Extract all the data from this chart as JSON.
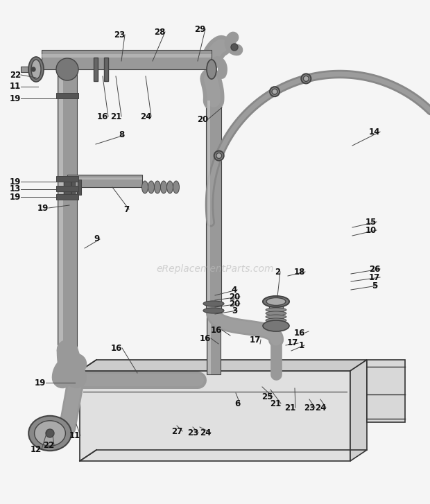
{
  "bg": "#f5f5f5",
  "pipe_fc": "#999999",
  "pipe_ec": "#444444",
  "pipe_lw": 1.0,
  "dark": "#333333",
  "light": "#cccccc",
  "wm_color": "#bbbbbb",
  "wm_text": "eReplacementParts.com",
  "label_fs": 8.5,
  "label_color": "#111111",
  "line_color": "#444444",
  "leader_lw": 0.7,
  "labels": [
    [
      "22",
      22,
      108,
      52,
      112
    ],
    [
      "11",
      22,
      125,
      55,
      125
    ],
    [
      "19",
      22,
      142,
      82,
      142
    ],
    [
      "23",
      172,
      50,
      175,
      88
    ],
    [
      "28",
      230,
      46,
      220,
      88
    ],
    [
      "29",
      288,
      42,
      285,
      88
    ],
    [
      "16",
      148,
      168,
      148,
      110
    ],
    [
      "21",
      167,
      168,
      167,
      110
    ],
    [
      "24",
      210,
      168,
      210,
      110
    ],
    [
      "8",
      175,
      195,
      138,
      208
    ],
    [
      "19",
      22,
      262,
      82,
      262
    ],
    [
      "13",
      22,
      273,
      82,
      273
    ],
    [
      "19",
      22,
      284,
      82,
      284
    ],
    [
      "19",
      62,
      300,
      100,
      296
    ],
    [
      "7",
      182,
      302,
      162,
      270
    ],
    [
      "9",
      140,
      345,
      122,
      358
    ],
    [
      "4",
      338,
      418,
      310,
      426
    ],
    [
      "20",
      338,
      428,
      310,
      433
    ],
    [
      "20",
      338,
      438,
      310,
      443
    ],
    [
      "3",
      338,
      448,
      310,
      453
    ],
    [
      "20",
      292,
      172,
      320,
      155
    ],
    [
      "18",
      432,
      392,
      415,
      398
    ],
    [
      "2",
      400,
      392,
      400,
      428
    ],
    [
      "16",
      312,
      476,
      332,
      484
    ],
    [
      "17",
      368,
      490,
      375,
      496
    ],
    [
      "16",
      296,
      488,
      315,
      496
    ],
    [
      "17",
      422,
      495,
      412,
      498
    ],
    [
      "1",
      435,
      498,
      420,
      506
    ],
    [
      "16",
      432,
      480,
      445,
      478
    ],
    [
      "14",
      540,
      190,
      508,
      210
    ],
    [
      "15",
      535,
      320,
      508,
      328
    ],
    [
      "10",
      535,
      332,
      508,
      340
    ],
    [
      "26",
      540,
      388,
      506,
      395
    ],
    [
      "17",
      540,
      400,
      506,
      406
    ],
    [
      "5",
      540,
      412,
      506,
      418
    ],
    [
      "19",
      58,
      552,
      108,
      552
    ],
    [
      "6",
      342,
      582,
      340,
      567
    ],
    [
      "25",
      385,
      572,
      378,
      558
    ],
    [
      "21",
      397,
      582,
      390,
      562
    ],
    [
      "21",
      418,
      588,
      425,
      560
    ],
    [
      "23",
      446,
      588,
      446,
      576
    ],
    [
      "24",
      462,
      588,
      462,
      576
    ],
    [
      "12",
      52,
      648,
      68,
      622
    ],
    [
      "22",
      70,
      642,
      76,
      628
    ],
    [
      "11",
      108,
      628,
      110,
      612
    ],
    [
      "27",
      255,
      622,
      255,
      614
    ],
    [
      "23",
      278,
      624,
      278,
      616
    ],
    [
      "24",
      296,
      624,
      288,
      616
    ],
    [
      "16",
      168,
      502,
      198,
      538
    ]
  ]
}
